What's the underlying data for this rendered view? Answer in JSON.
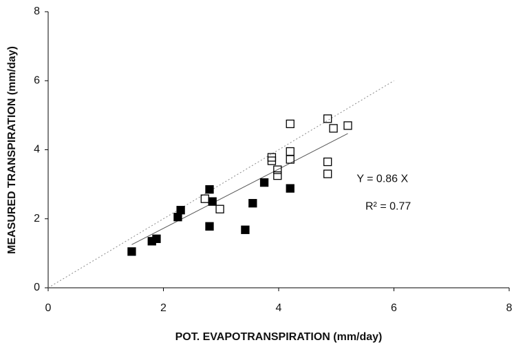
{
  "chart_data": {
    "type": "scatter",
    "x_label": "POT. EVAPOTRANSPIRATION (mm/day)",
    "y_label": "MEASURED TRANSPIRATION (mm/day)",
    "xlim": [
      0,
      8
    ],
    "ylim": [
      0,
      8
    ],
    "xticks": [
      0,
      2,
      4,
      6,
      8
    ],
    "yticks": [
      0,
      2,
      4,
      6,
      8
    ],
    "grid": false,
    "series": [
      {
        "color": "#000000",
        "marker_fill": "#000000",
        "x": [
          1.45,
          1.8,
          1.88,
          2.25,
          2.3,
          2.8,
          2.85,
          2.8,
          3.42,
          3.55,
          3.75,
          4.2
        ],
        "values": [
          1.05,
          1.35,
          1.42,
          2.05,
          2.25,
          2.85,
          2.5,
          1.78,
          1.68,
          2.45,
          3.05,
          2.88
        ]
      },
      {
        "color": "#000000",
        "marker_fill": "none",
        "x": [
          2.72,
          2.98,
          3.88,
          3.88,
          3.98,
          3.98,
          4.2,
          4.2,
          4.2,
          4.85,
          4.95,
          5.2,
          4.85,
          4.85
        ],
        "values": [
          2.58,
          2.28,
          3.78,
          3.68,
          3.42,
          3.25,
          4.75,
          3.95,
          3.72,
          4.9,
          4.62,
          4.7,
          3.65,
          3.3
        ]
      }
    ],
    "lines": [
      {
        "color": "#888888",
        "dash": "2 3",
        "x": [
          0,
          6
        ],
        "values": [
          0,
          6
        ]
      },
      {
        "color": "#555555",
        "dash": "none",
        "x": [
          1.45,
          5.2
        ],
        "values": [
          1.25,
          4.47
        ]
      }
    ],
    "annotations": [
      {
        "text": "Y = 0.86 X",
        "x": 5.8,
        "y": 3.15
      },
      {
        "text": "R² = 0.77",
        "x": 5.9,
        "y": 2.35
      }
    ]
  }
}
